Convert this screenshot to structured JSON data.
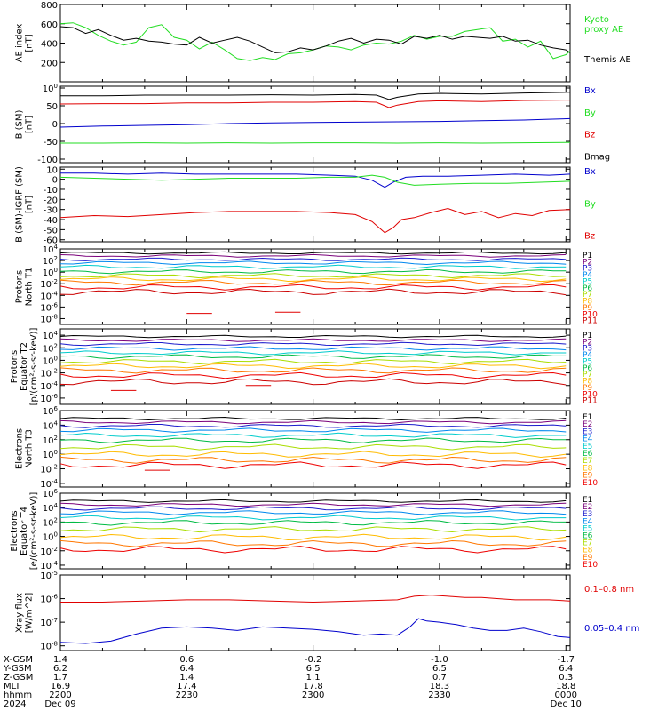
{
  "colors": {
    "black": "#000000",
    "red": "#e00000",
    "green": "#22dd22",
    "blue": "#0000cc",
    "P1": "#000000",
    "P2": "#7a007a",
    "P3": "#1a1acc",
    "P4": "#0088ee",
    "P5": "#00cccc",
    "P6": "#00bb44",
    "P7": "#aadd00",
    "P8": "#ffbb00",
    "P9": "#ff7700",
    "P10": "#ee0000",
    "P11": "#cc0000"
  },
  "chart_data": [
    {
      "type": "line",
      "ylabel": [
        "AE index",
        "[nT]"
      ],
      "ylim": [
        0,
        800
      ],
      "yticks": [
        {
          "v": 0,
          "t": ""
        },
        {
          "v": 200,
          "t": "200"
        },
        {
          "v": 400,
          "t": "400"
        },
        {
          "v": 600,
          "t": "600"
        },
        {
          "v": 800,
          "t": "800"
        }
      ],
      "series": [
        {
          "name": "Kyoto\nproxy AE",
          "color": "#22dd22",
          "x": [
            0,
            3,
            6,
            9,
            12,
            15,
            18,
            21,
            24,
            27,
            30,
            33,
            36,
            39,
            42,
            45,
            48,
            51,
            54,
            57,
            60,
            63,
            66,
            69,
            72,
            75,
            78,
            81,
            84,
            87,
            90,
            93,
            96,
            99,
            102,
            105,
            108,
            111,
            114,
            117,
            120,
            121
          ],
          "y": [
            600,
            610,
            560,
            480,
            420,
            380,
            410,
            560,
            590,
            460,
            430,
            340,
            410,
            330,
            240,
            220,
            250,
            230,
            290,
            300,
            330,
            370,
            360,
            330,
            380,
            400,
            390,
            420,
            480,
            440,
            470,
            470,
            520,
            540,
            560,
            420,
            440,
            360,
            420,
            240,
            280,
            320
          ]
        },
        {
          "name": "Themis AE",
          "color": "#000000",
          "x": [
            0,
            3,
            6,
            9,
            12,
            15,
            18,
            21,
            24,
            27,
            30,
            33,
            36,
            39,
            42,
            45,
            48,
            51,
            54,
            57,
            60,
            63,
            66,
            69,
            72,
            75,
            78,
            81,
            84,
            87,
            90,
            93,
            96,
            99,
            102,
            105,
            108,
            111,
            114,
            117,
            120,
            121
          ],
          "y": [
            570,
            560,
            500,
            540,
            480,
            430,
            450,
            420,
            410,
            390,
            380,
            460,
            400,
            430,
            460,
            420,
            360,
            300,
            310,
            350,
            330,
            370,
            420,
            450,
            400,
            440,
            430,
            390,
            470,
            450,
            480,
            440,
            470,
            460,
            450,
            470,
            420,
            430,
            380,
            350,
            330,
            300
          ]
        }
      ]
    },
    {
      "type": "line",
      "ylabel": [
        "B (SM)",
        "[nT]"
      ],
      "ylim": [
        -110,
        105
      ],
      "yticks": [
        {
          "v": -100,
          "t": "-100"
        },
        {
          "v": -50,
          "t": "-50"
        },
        {
          "v": 0,
          "t": "0"
        },
        {
          "v": 50,
          "t": "50"
        },
        {
          "v": 100,
          "t": "100"
        }
      ],
      "series": [
        {
          "name": "Bx",
          "color": "#0000cc",
          "x": [
            0,
            10,
            20,
            30,
            40,
            50,
            60,
            70,
            80,
            90,
            100,
            110,
            115,
            121
          ],
          "y": [
            -10,
            -7,
            -5,
            -3,
            0,
            2,
            3,
            4,
            5,
            6,
            8,
            10,
            12,
            14
          ]
        },
        {
          "name": "By",
          "color": "#22dd22",
          "x": [
            0,
            10,
            20,
            30,
            40,
            50,
            60,
            70,
            80,
            90,
            100,
            110,
            121
          ],
          "y": [
            -55,
            -55,
            -54,
            -55,
            -54,
            -55,
            -54,
            -54,
            -55,
            -54,
            -55,
            -54,
            -53
          ]
        },
        {
          "name": "Bz",
          "color": "#e00000",
          "x": [
            0,
            10,
            20,
            30,
            40,
            50,
            60,
            70,
            75,
            78,
            80,
            85,
            90,
            100,
            110,
            121
          ],
          "y": [
            55,
            56,
            56,
            58,
            58,
            60,
            60,
            62,
            60,
            45,
            52,
            62,
            64,
            62,
            65,
            66
          ]
        },
        {
          "name": "Bmag",
          "color": "#000000",
          "x": [
            0,
            10,
            20,
            30,
            40,
            50,
            60,
            70,
            75,
            78,
            80,
            85,
            90,
            100,
            110,
            121
          ],
          "y": [
            78,
            78,
            80,
            80,
            80,
            81,
            80,
            82,
            80,
            68,
            74,
            83,
            85,
            83,
            86,
            88
          ]
        }
      ]
    },
    {
      "type": "line",
      "ylabel": [
        "B (SM)-IGRF (SM)",
        "[nT]"
      ],
      "ylim": [
        -62,
        12
      ],
      "yticks": [
        {
          "v": -60,
          "t": "-60"
        },
        {
          "v": -50,
          "t": "-50"
        },
        {
          "v": -40,
          "t": "-40"
        },
        {
          "v": -30,
          "t": "-30"
        },
        {
          "v": -20,
          "t": "-20"
        },
        {
          "v": -10,
          "t": "-10"
        },
        {
          "v": 0,
          "t": "0"
        },
        {
          "v": 10,
          "t": "10"
        }
      ],
      "series": [
        {
          "name": "Bx",
          "color": "#0000cc",
          "x": [
            0,
            8,
            16,
            24,
            32,
            40,
            48,
            56,
            64,
            70,
            74,
            77,
            79,
            82,
            86,
            92,
            100,
            108,
            116,
            121
          ],
          "y": [
            6,
            6,
            5,
            6,
            5,
            5,
            5,
            5,
            4,
            3,
            -1,
            -8,
            -3,
            2,
            3,
            3,
            4,
            5,
            4,
            5
          ]
        },
        {
          "name": "By",
          "color": "#22dd22",
          "x": [
            0,
            8,
            16,
            24,
            32,
            40,
            48,
            56,
            64,
            70,
            74,
            77,
            80,
            84,
            90,
            98,
            106,
            114,
            121
          ],
          "y": [
            2,
            1,
            0,
            -1,
            0,
            1,
            1,
            1,
            2,
            2,
            4,
            2,
            -3,
            -6,
            -5,
            -4,
            -4,
            -3,
            -2
          ]
        },
        {
          "name": "Bz",
          "color": "#e00000",
          "x": [
            0,
            8,
            16,
            24,
            32,
            40,
            48,
            56,
            64,
            70,
            74,
            77,
            79,
            81,
            84,
            88,
            92,
            96,
            100,
            104,
            108,
            112,
            116,
            121
          ],
          "y": [
            -38,
            -36,
            -37,
            -35,
            -33,
            -32,
            -32,
            -32,
            -33,
            -35,
            -42,
            -53,
            -48,
            -40,
            -38,
            -33,
            -29,
            -35,
            -32,
            -38,
            -34,
            -36,
            -31,
            -30
          ]
        }
      ]
    },
    {
      "type": "line",
      "log": true,
      "ylabel": [
        "Protons",
        "North T1"
      ],
      "ylim": [
        -9,
        4
      ],
      "yticks": [
        {
          "v": -8,
          "t": "10-8"
        },
        {
          "v": -6,
          "t": "10-6"
        },
        {
          "v": -4,
          "t": "10-4"
        },
        {
          "v": -2,
          "t": "10-2"
        },
        {
          "v": 0,
          "t": "100"
        },
        {
          "v": 2,
          "t": "102"
        },
        {
          "v": 4,
          "t": "104"
        }
      ],
      "labels": [
        "P1",
        "P2",
        "P3",
        "P4",
        "P5",
        "P6",
        "P7",
        "P8",
        "P9",
        "P10",
        "P11"
      ],
      "levels": [
        3.3,
        2.8,
        2.2,
        1.6,
        0.9,
        0.1,
        -0.6,
        -1.2,
        -1.8,
        -2.6,
        -3.4
      ],
      "gaps": [
        {
          "y": -7.1,
          "x0": 30,
          "x1": 36
        },
        {
          "y": -6.9,
          "x0": 51,
          "x1": 57
        }
      ]
    },
    {
      "type": "line",
      "log": true,
      "ylabel": [
        "Protons",
        "Equator T2",
        "[p/(cm²-s-sr-keV)]"
      ],
      "ylim": [
        -7,
        5
      ],
      "yticks": [
        {
          "v": -6,
          "t": "10-6"
        },
        {
          "v": -4,
          "t": "10-4"
        },
        {
          "v": -2,
          "t": "10-2"
        },
        {
          "v": 0,
          "t": "100"
        },
        {
          "v": 2,
          "t": "102"
        },
        {
          "v": 4,
          "t": "104"
        }
      ],
      "labels": [
        "P1",
        "P2",
        "P3",
        "P4",
        "P5",
        "P6",
        "P7",
        "P8",
        "P9",
        "P10",
        "P11"
      ],
      "levels": [
        3.8,
        3.2,
        2.6,
        1.9,
        1.2,
        0.6,
        -0.2,
        -0.9,
        -1.6,
        -2.4,
        -3.4
      ],
      "gaps": [
        {
          "y": -4.8,
          "x0": 12,
          "x1": 18
        },
        {
          "y": -4.0,
          "x0": 44,
          "x1": 50
        }
      ]
    },
    {
      "type": "line",
      "log": true,
      "ylabel": [
        "Electrons",
        "North T3"
      ],
      "ylim": [
        -4.5,
        6
      ],
      "yticks": [
        {
          "v": -4,
          "t": "10-4"
        },
        {
          "v": -2,
          "t": "10-2"
        },
        {
          "v": 0,
          "t": "100"
        },
        {
          "v": 2,
          "t": "102"
        },
        {
          "v": 4,
          "t": "104"
        },
        {
          "v": 6,
          "t": "106"
        }
      ],
      "labels": [
        "E1",
        "E2",
        "E3",
        "E4",
        "E5",
        "E6",
        "E7",
        "E8",
        "E9",
        "E10"
      ],
      "levels": [
        4.9,
        4.4,
        3.9,
        3.3,
        2.6,
        1.9,
        1.0,
        0.0,
        -0.8,
        -1.5
      ],
      "gaps": [
        {
          "y": -2.2,
          "x0": 20,
          "x1": 26
        }
      ]
    },
    {
      "type": "line",
      "log": true,
      "ylabel": [
        "Electrons",
        "Equator T4",
        "[e/(cm²-s-sr-keV)]"
      ],
      "ylim": [
        -4.5,
        6
      ],
      "yticks": [
        {
          "v": -4,
          "t": "10-4"
        },
        {
          "v": -2,
          "t": "10-2"
        },
        {
          "v": 0,
          "t": "100"
        },
        {
          "v": 2,
          "t": "102"
        },
        {
          "v": 4,
          "t": "104"
        },
        {
          "v": 6,
          "t": "106"
        }
      ],
      "labels": [
        "E1",
        "E2",
        "E3",
        "E4",
        "E5",
        "E6",
        "E7",
        "E8",
        "E9",
        "E10"
      ],
      "levels": [
        4.9,
        4.4,
        3.9,
        3.3,
        2.6,
        1.9,
        1.0,
        -0.1,
        -1.0,
        -1.8
      ],
      "gaps": []
    },
    {
      "type": "line",
      "log": true,
      "ylabel": [
        "Xray flux",
        "[W/m^2]"
      ],
      "ylim": [
        -8.2,
        -5
      ],
      "yticks": [
        {
          "v": -8,
          "t": "10-8"
        },
        {
          "v": -7,
          "t": "10-7"
        },
        {
          "v": -6,
          "t": "10-6"
        },
        {
          "v": -5,
          "t": "10-5"
        }
      ],
      "series": [
        {
          "name": "0.1–0.8 nm",
          "color": "#e00000",
          "x": [
            0,
            10,
            20,
            30,
            40,
            50,
            60,
            70,
            80,
            84,
            88,
            92,
            96,
            100,
            104,
            108,
            112,
            116,
            121
          ],
          "y": [
            -6.15,
            -6.15,
            -6.1,
            -6.05,
            -6.05,
            -6.1,
            -6.15,
            -6.1,
            -6.05,
            -5.9,
            -5.85,
            -5.9,
            -5.95,
            -5.95,
            -6.0,
            -6.05,
            -6.05,
            -6.05,
            -6.1
          ]
        },
        {
          "name": "0.05–0.4 nm",
          "color": "#0000cc",
          "x": [
            0,
            6,
            12,
            18,
            24,
            30,
            36,
            42,
            48,
            54,
            60,
            66,
            72,
            76,
            80,
            83,
            85,
            87,
            90,
            94,
            98,
            102,
            106,
            110,
            114,
            118,
            121
          ],
          "y": [
            -7.85,
            -7.9,
            -7.8,
            -7.5,
            -7.25,
            -7.2,
            -7.25,
            -7.35,
            -7.2,
            -7.25,
            -7.3,
            -7.4,
            -7.55,
            -7.5,
            -7.55,
            -7.2,
            -6.85,
            -6.95,
            -7.0,
            -7.1,
            -7.25,
            -7.35,
            -7.35,
            -7.25,
            -7.4,
            -7.6,
            -7.65
          ]
        }
      ]
    }
  ],
  "xaxis": {
    "row_labels": [
      "X-GSM",
      "Y-GSM",
      "Z-GSM",
      "MLT",
      "hhmm",
      "2024"
    ],
    "columns": [
      {
        "x": 0,
        "vals": [
          "1.4",
          "6.2",
          "1.7",
          "16.9",
          "2200",
          "Dec 09"
        ]
      },
      {
        "x": 30,
        "vals": [
          "0.6",
          "6.4",
          "1.4",
          "17.4",
          "2230",
          ""
        ]
      },
      {
        "x": 60,
        "vals": [
          "-0.2",
          "6.5",
          "1.1",
          "17.8",
          "2300",
          ""
        ]
      },
      {
        "x": 90,
        "vals": [
          "-1.0",
          "6.5",
          "0.7",
          "18.3",
          "2330",
          ""
        ]
      },
      {
        "x": 120,
        "vals": [
          "-1.7",
          "6.4",
          "0.3",
          "18.8",
          "0000",
          "Dec 10"
        ]
      }
    ]
  }
}
